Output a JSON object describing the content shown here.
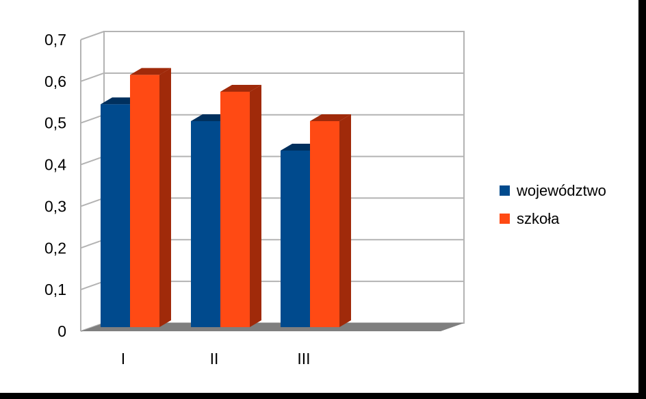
{
  "chart_data": {
    "type": "bar",
    "categories": [
      "I",
      "II",
      "III",
      ""
    ],
    "series": [
      {
        "name": "województwo",
        "values": [
          0.53,
          0.49,
          0.42,
          null
        ],
        "color": "#004a8d",
        "dark": "#00305e"
      },
      {
        "name": "szkoła",
        "values": [
          0.6,
          0.56,
          0.49,
          null
        ],
        "color": "#ff4a14",
        "dark": "#a02a0a"
      }
    ],
    "yticks": [
      "0",
      "0,1",
      "0,2",
      "0,3",
      "0,4",
      "0,5",
      "0,6",
      "0,7"
    ],
    "ylim": [
      0,
      0.7
    ],
    "grid": true,
    "legend_position": "right",
    "title": "",
    "xlabel": "",
    "ylabel": ""
  }
}
